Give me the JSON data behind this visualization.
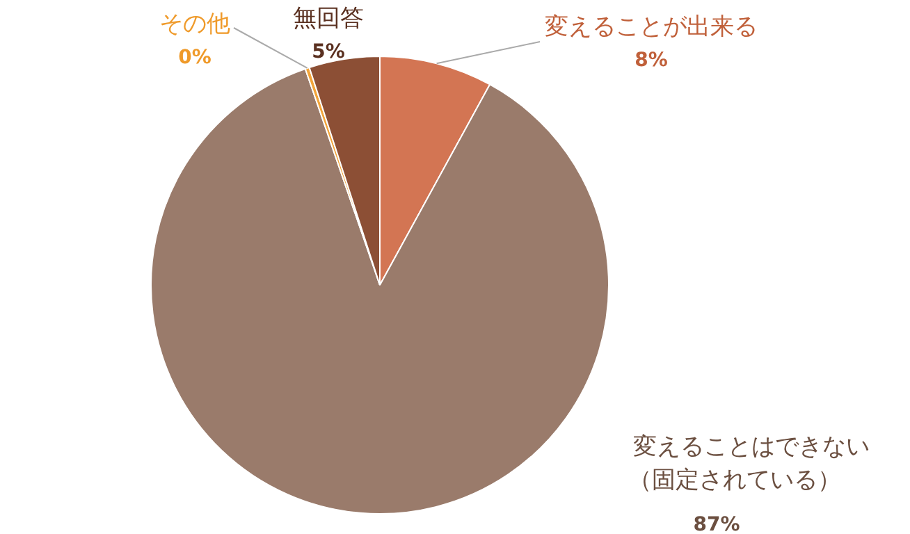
{
  "chart_data": {
    "type": "pie",
    "categories": [
      "変えることが出来る",
      "変えることはできない（固定されている）",
      "その他",
      "無回答"
    ],
    "values": [
      8,
      87,
      0.3,
      5
    ],
    "value_labels": [
      "8%",
      "87%",
      "0%",
      "5%"
    ],
    "colors": [
      "#d37553",
      "#9a7b6b",
      "#f2a43a",
      "#8c4f35"
    ],
    "legend": false
  }
}
